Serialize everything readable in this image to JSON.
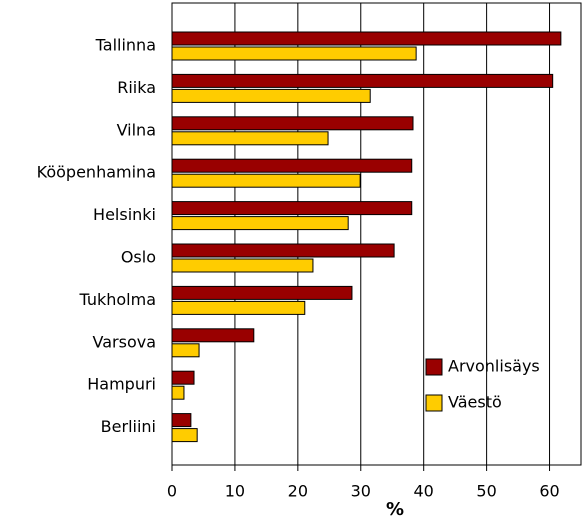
{
  "chart_data": {
    "type": "barh",
    "categories": [
      "Tallinna",
      "Riika",
      "Vilna",
      "Kööpenhamina",
      "Helsinki",
      "Oslo",
      "Tukholma",
      "Varsova",
      "Hampuri",
      "Berliini"
    ],
    "series": [
      {
        "name": "Arvonlisäys",
        "color": "#990000",
        "values": [
          61.8,
          60.5,
          38.3,
          38.1,
          38.1,
          35.3,
          28.6,
          13,
          3.5,
          3
        ]
      },
      {
        "name": "Väestö",
        "color": "#ffcc00",
        "values": [
          38.8,
          31.5,
          24.8,
          29.9,
          28,
          22.4,
          21.1,
          4.3,
          1.9,
          4
        ]
      }
    ],
    "xlabel": "%",
    "xlim": [
      0,
      65
    ],
    "xticks": [
      0,
      10,
      20,
      30,
      40,
      50,
      60
    ],
    "grid": true,
    "legend": "lower right"
  }
}
